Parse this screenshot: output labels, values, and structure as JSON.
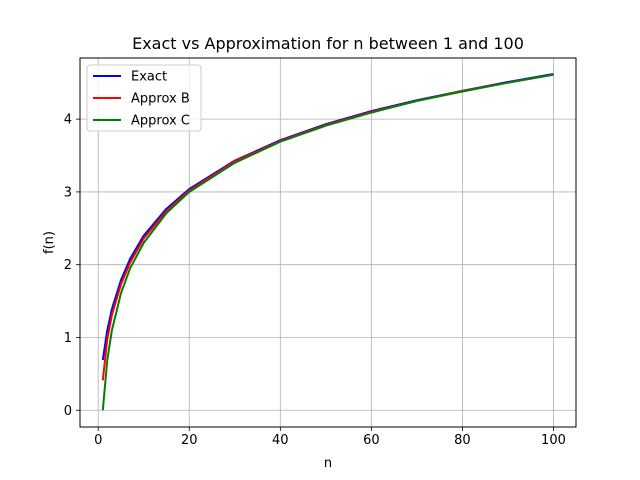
{
  "chart_data": {
    "type": "line",
    "title": "Exact vs Approximation for n between 1 and 100",
    "xlabel": "n",
    "ylabel": "f(n)",
    "xlim": [
      -4.0,
      104.95
    ],
    "ylim": [
      -0.23,
      4.84
    ],
    "xticks": [
      0,
      20,
      40,
      60,
      80,
      100
    ],
    "yticks": [
      0,
      1,
      2,
      3,
      4
    ],
    "grid": true,
    "legend": {
      "position": "upper-left"
    },
    "series": [
      {
        "name": "Exact",
        "color": "#0000ff",
        "x": [
          1,
          2,
          3,
          5,
          7,
          10,
          15,
          20,
          30,
          40,
          50,
          60,
          70,
          80,
          90,
          100
        ],
        "y": [
          0.69,
          1.1,
          1.39,
          1.79,
          2.08,
          2.4,
          2.77,
          3.04,
          3.43,
          3.71,
          3.93,
          4.11,
          4.26,
          4.39,
          4.51,
          4.62
        ]
      },
      {
        "name": "Approx B",
        "color": "#ff0000",
        "x": [
          1,
          2,
          3,
          5,
          7,
          10,
          15,
          20,
          30,
          40,
          50,
          60,
          70,
          80,
          90,
          100
        ],
        "y": [
          0.41,
          0.98,
          1.31,
          1.73,
          2.03,
          2.36,
          2.74,
          3.02,
          3.42,
          3.7,
          3.92,
          4.1,
          4.25,
          4.39,
          4.5,
          4.61
        ]
      },
      {
        "name": "Approx C",
        "color": "#008000",
        "x": [
          1,
          2,
          3,
          5,
          7,
          10,
          15,
          20,
          30,
          40,
          50,
          60,
          70,
          80,
          90,
          100
        ],
        "y": [
          0.0,
          0.69,
          1.1,
          1.61,
          1.95,
          2.3,
          2.71,
          3.0,
          3.4,
          3.69,
          3.91,
          4.09,
          4.25,
          4.38,
          4.5,
          4.61
        ]
      }
    ]
  }
}
